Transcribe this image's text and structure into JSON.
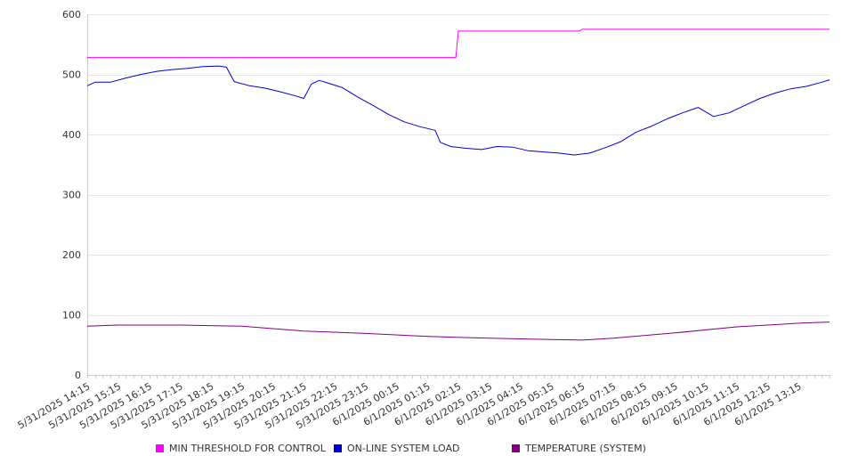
{
  "chart_data": {
    "type": "line",
    "title": "",
    "xlabel": "",
    "ylabel": "",
    "ylim": [
      0,
      600
    ],
    "y_ticks": [
      0,
      100,
      200,
      300,
      400,
      500,
      600
    ],
    "x_tick_labels": [
      "5/31/2025 14:15",
      "5/31/2025 15:15",
      "5/31/2025 16:15",
      "5/31/2025 17:15",
      "5/31/2025 18:15",
      "5/31/2025 19:15",
      "5/31/2025 20:15",
      "5/31/2025 21:15",
      "5/31/2025 22:15",
      "5/31/2025 23:15",
      "6/1/2025 00:15",
      "6/1/2025 01:15",
      "6/1/2025 02:15",
      "6/1/2025 03:15",
      "6/1/2025 04:15",
      "6/1/2025 05:15",
      "6/1/2025 06:15",
      "6/1/2025 07:15",
      "6/1/2025 08:15",
      "6/1/2025 09:15",
      "6/1/2025 10:15",
      "6/1/2025 11:15",
      "6/1/2025 12:15",
      "6/1/2025 13:15"
    ],
    "x_range": [
      "5/31/2025 14:15",
      "6/1/2025 14:15"
    ],
    "grid": "horizontal",
    "legend_position": "bottom",
    "series": [
      {
        "name": "MIN THRESHOLD FOR CONTROL",
        "color": "#ff00ff",
        "x": [
          "5/31/2025 14:15",
          "6/1/2025 02:10",
          "6/1/2025 02:15",
          "6/1/2025 06:10",
          "6/1/2025 06:15",
          "6/1/2025 14:15"
        ],
        "values": [
          528,
          528,
          572,
          572,
          575,
          575
        ]
      },
      {
        "name": "ON-LINE SYSTEM LOAD",
        "color": "#0000cc",
        "x": [
          "5/31/2025 14:15",
          "5/31/2025 14:30",
          "5/31/2025 15:00",
          "5/31/2025 15:30",
          "5/31/2025 16:00",
          "5/31/2025 16:30",
          "5/31/2025 17:00",
          "5/31/2025 17:30",
          "5/31/2025 18:00",
          "5/31/2025 18:30",
          "5/31/2025 18:45",
          "5/31/2025 19:00",
          "5/31/2025 19:30",
          "5/31/2025 20:00",
          "5/31/2025 20:30",
          "5/31/2025 21:00",
          "5/31/2025 21:15",
          "5/31/2025 21:30",
          "5/31/2025 21:45",
          "5/31/2025 22:00",
          "5/31/2025 22:30",
          "5/31/2025 23:00",
          "5/31/2025 23:30",
          "6/1/2025 00:00",
          "6/1/2025 00:30",
          "6/1/2025 01:00",
          "6/1/2025 01:30",
          "6/1/2025 01:40",
          "6/1/2025 02:00",
          "6/1/2025 02:30",
          "6/1/2025 03:00",
          "6/1/2025 03:30",
          "6/1/2025 04:00",
          "6/1/2025 04:30",
          "6/1/2025 05:00",
          "6/1/2025 05:30",
          "6/1/2025 06:00",
          "6/1/2025 06:30",
          "6/1/2025 07:00",
          "6/1/2025 07:30",
          "6/1/2025 08:00",
          "6/1/2025 08:30",
          "6/1/2025 09:00",
          "6/1/2025 09:30",
          "6/1/2025 10:00",
          "6/1/2025 10:30",
          "6/1/2025 11:00",
          "6/1/2025 11:30",
          "6/1/2025 12:00",
          "6/1/2025 12:30",
          "6/1/2025 13:00",
          "6/1/2025 13:30",
          "6/1/2025 14:00",
          "6/1/2025 14:15"
        ],
        "values": [
          481,
          487,
          487,
          494,
          500,
          505,
          508,
          510,
          513,
          514,
          512,
          488,
          481,
          477,
          471,
          464,
          460,
          484,
          490,
          486,
          478,
          462,
          448,
          433,
          421,
          413,
          407,
          387,
          380,
          377,
          375,
          380,
          379,
          373,
          371,
          369,
          366,
          369,
          378,
          388,
          404,
          414,
          426,
          436,
          445,
          430,
          436,
          448,
          460,
          469,
          476,
          480,
          487,
          491
        ]
      },
      {
        "name": "TEMPERATURE (SYSTEM)",
        "color": "#800080",
        "x": [
          "5/31/2025 14:15",
          "5/31/2025 15:15",
          "5/31/2025 17:15",
          "5/31/2025 19:15",
          "5/31/2025 21:15",
          "5/31/2025 23:15",
          "6/1/2025 01:15",
          "6/1/2025 03:15",
          "6/1/2025 05:15",
          "6/1/2025 06:15",
          "6/1/2025 07:15",
          "6/1/2025 09:15",
          "6/1/2025 11:15",
          "6/1/2025 13:15",
          "6/1/2025 14:15"
        ],
        "values": [
          81,
          83,
          83,
          81,
          73,
          69,
          64,
          61,
          59,
          58,
          61,
          70,
          80,
          86,
          88
        ]
      }
    ]
  }
}
